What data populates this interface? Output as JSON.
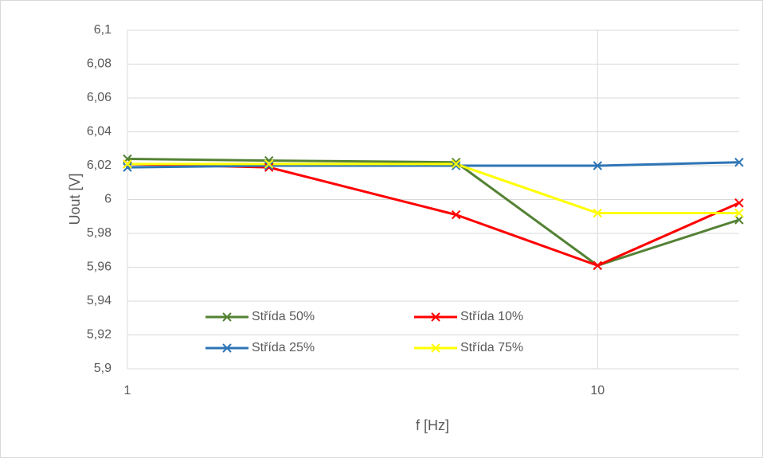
{
  "chart_data": {
    "type": "line",
    "x": [
      1,
      2,
      5,
      10,
      20
    ],
    "xlabel": "f [Hz]",
    "ylabel": "Uout [V]",
    "xscale": "log",
    "xlim": [
      1,
      20
    ],
    "xticks": [
      1,
      10
    ],
    "ylim": [
      5.9,
      6.1
    ],
    "yticks": [
      {
        "value": 5.9,
        "label": "5,9"
      },
      {
        "value": 5.92,
        "label": "5,92"
      },
      {
        "value": 5.94,
        "label": "5,94"
      },
      {
        "value": 5.96,
        "label": "5,96"
      },
      {
        "value": 5.98,
        "label": "5,98"
      },
      6,
      {
        "value": 6.02,
        "label": "6,02"
      },
      {
        "value": 6.04,
        "label": "6,04"
      },
      {
        "value": 6.06,
        "label": "6,06"
      },
      {
        "value": 6.08,
        "label": "6,08"
      },
      {
        "value": 6.1,
        "label": "6,1"
      }
    ],
    "grid": true,
    "legend": "bottom-left",
    "series": [
      {
        "name": "Střída 50%",
        "color": "#548235",
        "values": [
          6.024,
          6.023,
          6.022,
          5.961,
          5.988
        ]
      },
      {
        "name": "Střída 10%",
        "color": "#ff0000",
        "values": [
          6.021,
          6.019,
          5.991,
          5.961,
          5.998
        ]
      },
      {
        "name": "Střída 25%",
        "color": "#2e75b6",
        "values": [
          6.019,
          6.02,
          6.02,
          6.02,
          6.022
        ]
      },
      {
        "name": "Střída 75%",
        "color": "#ffff00",
        "values": [
          6.021,
          6.021,
          6.021,
          5.992,
          5.992
        ]
      }
    ]
  }
}
